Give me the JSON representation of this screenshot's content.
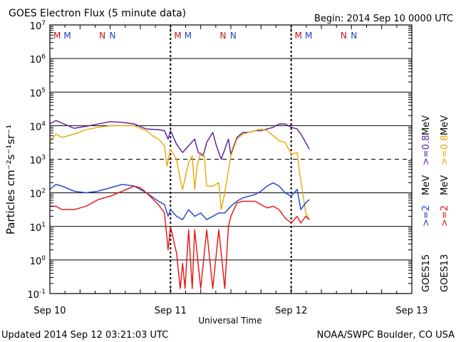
{
  "title": "GOES Electron Flux (5 minute data)",
  "begin_label": "Begin: 2014 Sep 10 0000 UTC",
  "updated_label": "Updated 2014 Sep 12 03:21:03 UTC",
  "credit_label": "NOAA/SWPC Boulder, CO USA",
  "colors": {
    "goes15_2mev": "#1a3fd0",
    "goes13_2mev": "#e81010",
    "goes15_08mev": "#5a1a9a",
    "goes13_08mev": "#e8a800",
    "marker_m": [
      "#c81010",
      "#1a3fd0"
    ],
    "marker_n": [
      "#c81010",
      "#1a3fd0"
    ]
  },
  "chart_data": {
    "type": "line",
    "title": "GOES Electron Flux (5 minute data)",
    "xlabel": "Universal Time",
    "ylabel": "Particles cm⁻²s⁻¹sr⁻¹",
    "xlim": [
      0,
      3
    ],
    "ylim_log10": [
      -1,
      7
    ],
    "x_ticks": [
      {
        "x": 0,
        "label": "Sep 10"
      },
      {
        "x": 1,
        "label": "Sep 11"
      },
      {
        "x": 2,
        "label": "Sep 12"
      },
      {
        "x": 3,
        "label": "Sep 13"
      }
    ],
    "y_ticks": [
      {
        "exp": 7,
        "base": "10",
        "sup": "7"
      },
      {
        "exp": 6,
        "base": "10",
        "sup": "6"
      },
      {
        "exp": 5,
        "base": "10",
        "sup": "5"
      },
      {
        "exp": 4,
        "base": "10",
        "sup": "4"
      },
      {
        "exp": 3,
        "base": "10",
        "sup": "3"
      },
      {
        "exp": 2,
        "base": "10",
        "sup": "2"
      },
      {
        "exp": 1,
        "base": "10",
        "sup": "1"
      },
      {
        "exp": 0,
        "base": "10",
        "sup": "0"
      },
      {
        "exp": -1,
        "base": "10",
        "sup": "-1"
      }
    ],
    "threshold_log10": 3,
    "day_markers": [
      {
        "x": 0.06,
        "letter": "M",
        "color_key": "goes13"
      },
      {
        "x": 0.145,
        "letter": "M",
        "color_key": "goes15"
      },
      {
        "x": 0.435,
        "letter": "N",
        "color_key": "goes13"
      },
      {
        "x": 0.52,
        "letter": "N",
        "color_key": "goes15"
      },
      {
        "x": 1.06,
        "letter": "M",
        "color_key": "goes13"
      },
      {
        "x": 1.145,
        "letter": "M",
        "color_key": "goes15"
      },
      {
        "x": 1.435,
        "letter": "N",
        "color_key": "goes13"
      },
      {
        "x": 1.52,
        "letter": "N",
        "color_key": "goes15"
      },
      {
        "x": 2.06,
        "letter": "M",
        "color_key": "goes13"
      },
      {
        "x": 2.145,
        "letter": "M",
        "color_key": "goes15"
      },
      {
        "x": 2.435,
        "letter": "N",
        "color_key": "goes13"
      },
      {
        "x": 2.52,
        "letter": "N",
        "color_key": "goes15"
      }
    ],
    "legend": {
      "goes15": "GOES15",
      "goes13": "GOES13",
      "ge2_a": ">=2",
      "ge2_b": ">=2",
      "ge08_a": ">=0.8",
      "ge08_b": ">=0.8",
      "mev_a": "MeV",
      "mev_b": "MeV",
      "mev_c": "MeV",
      "mev_d": "MeV"
    },
    "series": [
      {
        "name": "GOES15 >=0.8 MeV",
        "color_key": "goes15_08mev",
        "points": [
          [
            0,
            4.05
          ],
          [
            0.05,
            4.15
          ],
          [
            0.1,
            4.08
          ],
          [
            0.2,
            3.92
          ],
          [
            0.3,
            3.98
          ],
          [
            0.4,
            4.05
          ],
          [
            0.5,
            4.12
          ],
          [
            0.6,
            4.1
          ],
          [
            0.7,
            4.05
          ],
          [
            0.8,
            3.9
          ],
          [
            0.9,
            3.88
          ],
          [
            0.95,
            3.85
          ],
          [
            0.98,
            3.6
          ],
          [
            1.0,
            3.85
          ],
          [
            1.05,
            3.45
          ],
          [
            1.1,
            3.2
          ],
          [
            1.15,
            3.4
          ],
          [
            1.2,
            3.6
          ],
          [
            1.23,
            3.2
          ],
          [
            1.27,
            3.1
          ],
          [
            1.3,
            3.5
          ],
          [
            1.35,
            3.8
          ],
          [
            1.38,
            3.4
          ],
          [
            1.42,
            3.0
          ],
          [
            1.48,
            3.6
          ],
          [
            1.5,
            3.15
          ],
          [
            1.55,
            3.65
          ],
          [
            1.6,
            3.8
          ],
          [
            1.65,
            3.8
          ],
          [
            1.7,
            3.85
          ],
          [
            1.75,
            3.85
          ],
          [
            1.8,
            3.9
          ],
          [
            1.85,
            3.95
          ],
          [
            1.9,
            4.05
          ],
          [
            1.95,
            4.05
          ],
          [
            2.0,
            3.95
          ],
          [
            2.05,
            3.9
          ],
          [
            2.08,
            3.75
          ],
          [
            2.12,
            3.5
          ],
          [
            2.15,
            3.3
          ]
        ]
      },
      {
        "name": "GOES13 >=0.8 MeV",
        "color_key": "goes13_08mev",
        "points": [
          [
            0,
            3.5
          ],
          [
            0.05,
            3.75
          ],
          [
            0.1,
            3.65
          ],
          [
            0.2,
            3.75
          ],
          [
            0.3,
            3.88
          ],
          [
            0.4,
            3.95
          ],
          [
            0.5,
            4.0
          ],
          [
            0.6,
            4.0
          ],
          [
            0.7,
            4.0
          ],
          [
            0.8,
            3.85
          ],
          [
            0.85,
            3.7
          ],
          [
            0.9,
            3.6
          ],
          [
            0.95,
            3.4
          ],
          [
            0.97,
            2.8
          ],
          [
            1.0,
            3.3
          ],
          [
            1.05,
            3.0
          ],
          [
            1.08,
            2.4
          ],
          [
            1.1,
            2.1
          ],
          [
            1.15,
            2.9
          ],
          [
            1.18,
            3.1
          ],
          [
            1.2,
            2.1
          ],
          [
            1.22,
            2.8
          ],
          [
            1.25,
            3.2
          ],
          [
            1.28,
            3.1
          ],
          [
            1.3,
            2.2
          ],
          [
            1.35,
            2.2
          ],
          [
            1.4,
            2.3
          ],
          [
            1.42,
            1.5
          ],
          [
            1.45,
            2.0
          ],
          [
            1.5,
            3.1
          ],
          [
            1.55,
            3.6
          ],
          [
            1.6,
            3.75
          ],
          [
            1.65,
            3.8
          ],
          [
            1.7,
            3.85
          ],
          [
            1.75,
            3.9
          ],
          [
            1.8,
            3.85
          ],
          [
            1.85,
            3.7
          ],
          [
            1.9,
            3.55
          ],
          [
            1.95,
            3.5
          ],
          [
            2.0,
            3.15
          ],
          [
            2.05,
            3.2
          ],
          [
            2.07,
            2.6
          ],
          [
            2.1,
            1.9
          ],
          [
            2.12,
            1.4
          ],
          [
            2.15,
            1.2
          ]
        ]
      },
      {
        "name": "GOES15 >=2 MeV",
        "color_key": "goes15_2mev",
        "points": [
          [
            0,
            2.1
          ],
          [
            0.05,
            2.25
          ],
          [
            0.1,
            2.2
          ],
          [
            0.2,
            2.05
          ],
          [
            0.3,
            2.0
          ],
          [
            0.4,
            2.05
          ],
          [
            0.5,
            2.15
          ],
          [
            0.6,
            2.25
          ],
          [
            0.7,
            2.2
          ],
          [
            0.8,
            2.0
          ],
          [
            0.9,
            1.75
          ],
          [
            0.95,
            1.65
          ],
          [
            0.98,
            1.3
          ],
          [
            1.0,
            1.5
          ],
          [
            1.05,
            1.3
          ],
          [
            1.1,
            1.2
          ],
          [
            1.15,
            1.5
          ],
          [
            1.2,
            1.3
          ],
          [
            1.25,
            1.4
          ],
          [
            1.3,
            1.2
          ],
          [
            1.35,
            1.3
          ],
          [
            1.4,
            1.4
          ],
          [
            1.45,
            1.4
          ],
          [
            1.5,
            1.6
          ],
          [
            1.55,
            1.75
          ],
          [
            1.6,
            1.85
          ],
          [
            1.65,
            1.9
          ],
          [
            1.7,
            1.95
          ],
          [
            1.75,
            2.05
          ],
          [
            1.8,
            2.2
          ],
          [
            1.85,
            2.3
          ],
          [
            1.9,
            2.2
          ],
          [
            1.95,
            2.0
          ],
          [
            2.0,
            1.9
          ],
          [
            2.05,
            2.1
          ],
          [
            2.08,
            1.5
          ],
          [
            2.12,
            1.7
          ],
          [
            2.15,
            1.8
          ]
        ]
      },
      {
        "name": "GOES13 >=2 MeV",
        "color_key": "goes13_2mev",
        "points": [
          [
            0,
            1.6
          ],
          [
            0.05,
            1.6
          ],
          [
            0.1,
            1.5
          ],
          [
            0.2,
            1.5
          ],
          [
            0.3,
            1.6
          ],
          [
            0.4,
            1.8
          ],
          [
            0.5,
            1.9
          ],
          [
            0.6,
            2.05
          ],
          [
            0.7,
            2.2
          ],
          [
            0.75,
            2.15
          ],
          [
            0.8,
            2.0
          ],
          [
            0.9,
            1.65
          ],
          [
            0.95,
            1.4
          ],
          [
            0.98,
            0.3
          ],
          [
            1.0,
            1.0
          ],
          [
            1.05,
            0.2
          ],
          [
            1.08,
            -0.85
          ],
          [
            1.1,
            -0.1
          ],
          [
            1.12,
            -0.85
          ],
          [
            1.15,
            0.9
          ],
          [
            1.18,
            -0.85
          ],
          [
            1.2,
            0.9
          ],
          [
            1.25,
            -0.85
          ],
          [
            1.3,
            0.9
          ],
          [
            1.35,
            -0.85
          ],
          [
            1.4,
            0.9
          ],
          [
            1.45,
            -0.85
          ],
          [
            1.48,
            1.0
          ],
          [
            1.5,
            1.3
          ],
          [
            1.55,
            1.7
          ],
          [
            1.6,
            1.75
          ],
          [
            1.7,
            1.75
          ],
          [
            1.75,
            1.65
          ],
          [
            1.8,
            1.55
          ],
          [
            1.85,
            1.6
          ],
          [
            1.9,
            1.5
          ],
          [
            1.95,
            1.25
          ],
          [
            2.0,
            1.1
          ],
          [
            2.05,
            1.3
          ],
          [
            2.08,
            1.1
          ],
          [
            2.12,
            1.3
          ],
          [
            2.15,
            1.2
          ]
        ]
      }
    ]
  }
}
